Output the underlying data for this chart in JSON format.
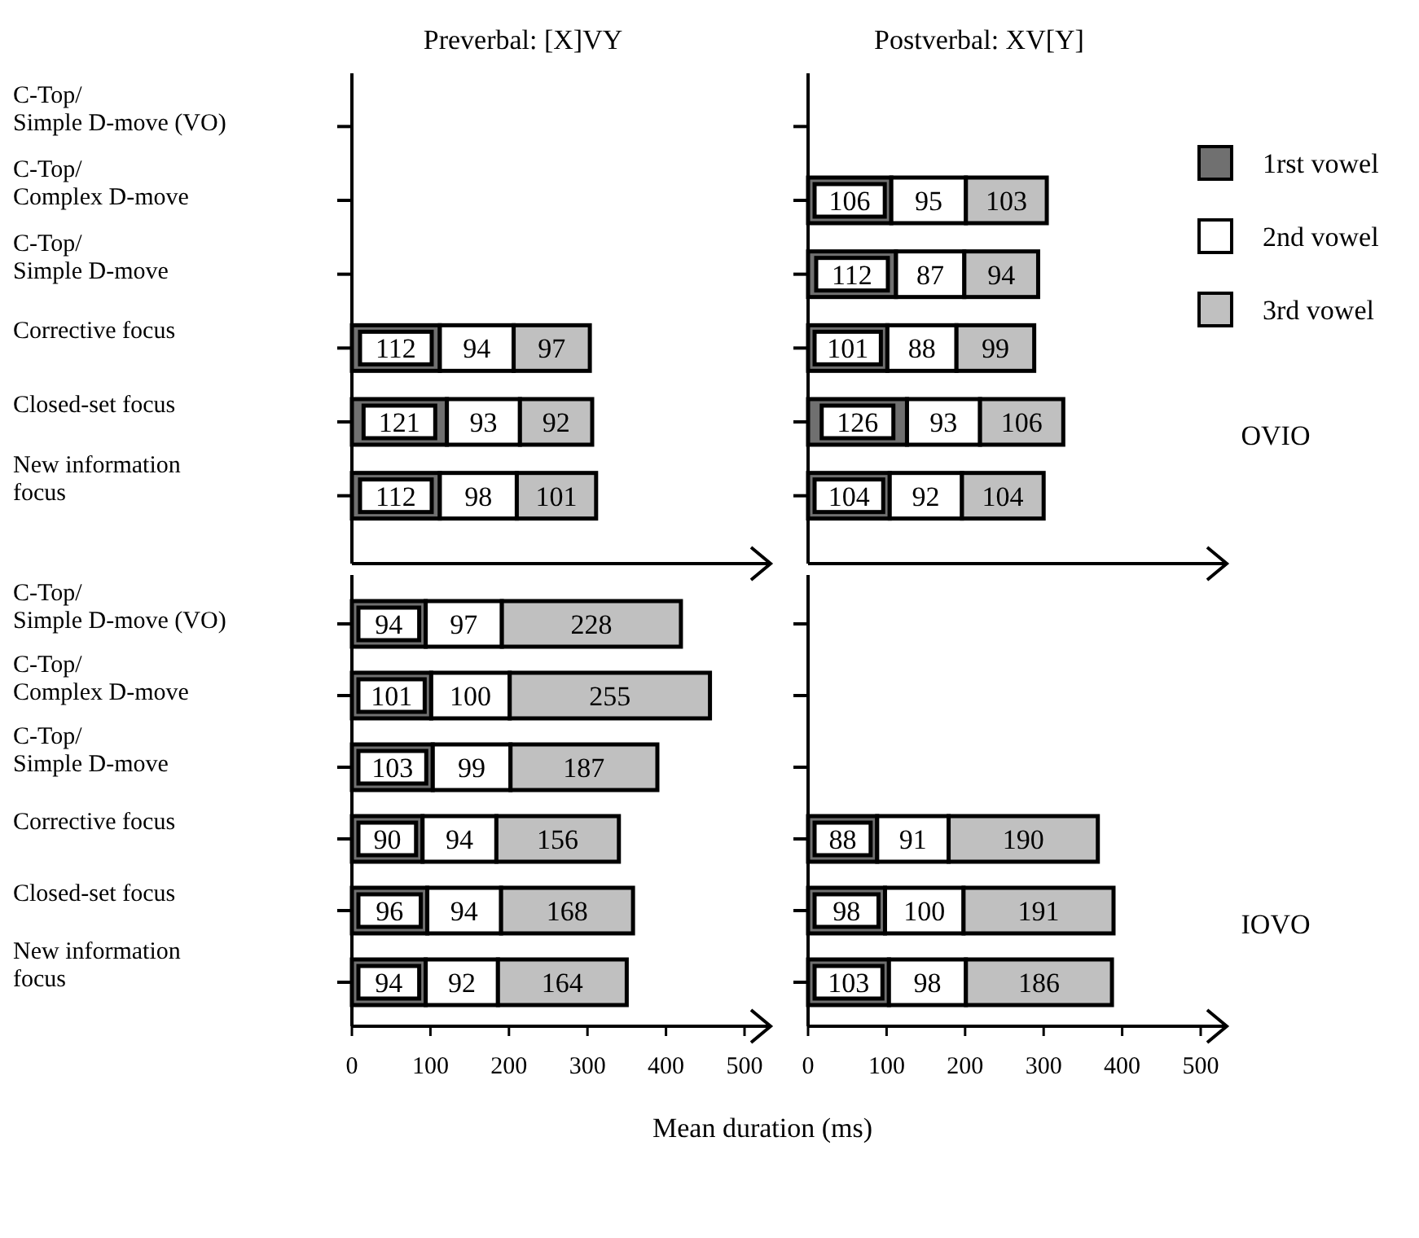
{
  "chart_data": [
    {
      "type": "bar",
      "orientation": "horizontal",
      "stacked": true,
      "title": "Preverbal: [X]VY",
      "categories": [
        "C-Top/\nSimple D-move (VO)",
        "C-Top/\nComplex D-move",
        "C-Top/\nSimple D-move",
        "Corrective focus",
        "Closed-set focus",
        "New information\nfocus"
      ],
      "series": [
        {
          "color": "#707070",
          "values": [
            null,
            null,
            null,
            112,
            121,
            112
          ]
        },
        {
          "color": "#ffffff",
          "values": [
            null,
            null,
            null,
            94,
            93,
            98
          ]
        },
        {
          "color": "#c0c0c0",
          "values": [
            null,
            null,
            null,
            97,
            92,
            101
          ]
        }
      ],
      "xlim": [
        0,
        500
      ],
      "tick_labels": "y",
      "data_labels": true,
      "legend": false,
      "grid": false
    },
    {
      "type": "bar",
      "orientation": "horizontal",
      "stacked": true,
      "title": "Postverbal: XV[Y]",
      "categories": [
        null,
        null,
        null,
        null,
        null,
        null
      ],
      "series": [
        {
          "name": "1rst vowel",
          "color": "#707070",
          "values": [
            null,
            106,
            112,
            101,
            126,
            104
          ]
        },
        {
          "name": "2nd vowel",
          "color": "#ffffff",
          "values": [
            null,
            95,
            87,
            88,
            93,
            92
          ]
        },
        {
          "name": "3rd vowel",
          "color": "#c0c0c0",
          "values": [
            null,
            103,
            94,
            99,
            106,
            104
          ]
        }
      ],
      "xlim": [
        0,
        500
      ],
      "tick_labels": false,
      "data_labels": true,
      "legend": "right",
      "grid": false,
      "annotations": [
        "OVIO"
      ]
    },
    {
      "type": "bar",
      "orientation": "horizontal",
      "stacked": true,
      "xlabel": "Mean duration (ms)",
      "categories": [
        "C-Top/\nSimple D-move (VO)",
        "C-Top/\nComplex D-move",
        "C-Top/\nSimple D-move",
        "Corrective focus",
        "Closed-set focus",
        "New information\nfocus"
      ],
      "series": [
        {
          "color": "#707070",
          "values": [
            94,
            101,
            103,
            90,
            96,
            94
          ]
        },
        {
          "color": "#ffffff",
          "values": [
            97,
            100,
            99,
            94,
            94,
            92
          ]
        },
        {
          "color": "#c0c0c0",
          "values": [
            228,
            255,
            187,
            156,
            168,
            164
          ]
        }
      ],
      "xlim": [
        0,
        500
      ],
      "xticks": [
        0,
        100,
        200,
        300,
        400,
        500
      ],
      "data_labels": true,
      "legend": false,
      "grid": false
    },
    {
      "type": "bar",
      "orientation": "horizontal",
      "stacked": true,
      "categories": [
        null,
        null,
        null,
        null,
        null,
        null
      ],
      "series": [
        {
          "color": "#707070",
          "values": [
            null,
            null,
            null,
            88,
            98,
            103
          ]
        },
        {
          "color": "#ffffff",
          "values": [
            null,
            null,
            null,
            91,
            100,
            98
          ]
        },
        {
          "color": "#c0c0c0",
          "values": [
            null,
            null,
            null,
            190,
            191,
            186
          ]
        }
      ],
      "xlim": [
        0,
        500
      ],
      "xticks": [
        0,
        100,
        200,
        300,
        400,
        500
      ],
      "tick_labels": "x",
      "data_labels": true,
      "legend": false,
      "grid": false,
      "annotations": [
        "IOVO"
      ]
    }
  ]
}
